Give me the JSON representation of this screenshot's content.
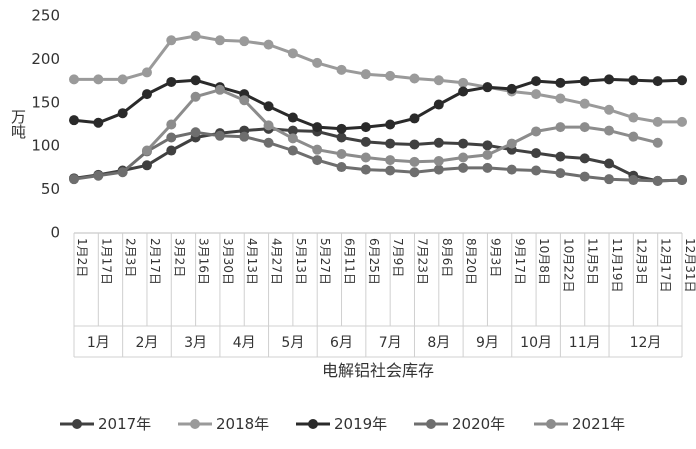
{
  "chart_data": {
    "type": "line",
    "xlabel": "电解铝社会库存",
    "ylabel": "万吨",
    "ylim": [
      0,
      250
    ],
    "yticks": [
      0,
      50,
      100,
      150,
      200,
      250
    ],
    "grid": false,
    "legend_position": "bottom",
    "x_tick_labels": [
      "1月2日",
      "1月17日",
      "2月3日",
      "2月17日",
      "3月2日",
      "3月16日",
      "3月30日",
      "4月13日",
      "4月27日",
      "5月13日",
      "5月27日",
      "6月11日",
      "6月25日",
      "7月9日",
      "7月23日",
      "8月6日",
      "8月20日",
      "9月3日",
      "9月17日",
      "10月8日",
      "10月22日",
      "11月5日",
      "11月19日",
      "12月3日",
      "12月17日",
      "12月31日"
    ],
    "months": [
      "1月",
      "2月",
      "3月",
      "4月",
      "5月",
      "6月",
      "7月",
      "8月",
      "9月",
      "10月",
      "11月",
      "12月"
    ],
    "month_spans": [
      [
        0,
        2
      ],
      [
        2,
        4
      ],
      [
        4,
        6
      ],
      [
        6,
        8
      ],
      [
        8,
        10
      ],
      [
        10,
        12
      ],
      [
        12,
        14
      ],
      [
        14,
        16
      ],
      [
        16,
        18
      ],
      [
        18,
        20
      ],
      [
        20,
        22
      ],
      [
        22,
        25
      ]
    ],
    "series": [
      {
        "name": "2017年",
        "color": "#404040",
        "values": [
          63,
          67,
          72,
          78,
          95,
          110,
          115,
          118,
          120,
          118,
          117,
          110,
          105,
          103,
          102,
          104,
          103,
          101,
          96,
          92,
          88,
          86,
          80,
          66,
          60,
          61
        ]
      },
      {
        "name": "2018年",
        "color": "#9a9a9a",
        "values": [
          177,
          177,
          177,
          185,
          222,
          227,
          222,
          221,
          217,
          207,
          196,
          188,
          183,
          181,
          178,
          176,
          173,
          168,
          163,
          160,
          155,
          149,
          142,
          133,
          128,
          128
        ]
      },
      {
        "name": "2019年",
        "color": "#2a2a2a",
        "values": [
          130,
          127,
          138,
          160,
          174,
          176,
          168,
          160,
          146,
          133,
          122,
          120,
          122,
          125,
          132,
          148,
          163,
          168,
          166,
          175,
          173,
          175,
          177,
          176,
          175,
          176
        ]
      },
      {
        "name": "2020年",
        "color": "#6e6e6e",
        "values": [
          62,
          66,
          70,
          94,
          110,
          116,
          112,
          111,
          104,
          95,
          84,
          76,
          73,
          72,
          70,
          73,
          75,
          75,
          73,
          72,
          69,
          65,
          62,
          61,
          60,
          61
        ]
      },
      {
        "name": "2021年",
        "color": "#8c8c8c",
        "values": [
          null,
          null,
          null,
          95,
          125,
          157,
          165,
          153,
          124,
          109,
          96,
          91,
          87,
          84,
          82,
          83,
          87,
          90,
          103,
          117,
          122,
          122,
          118,
          111,
          104,
          null
        ]
      }
    ]
  }
}
